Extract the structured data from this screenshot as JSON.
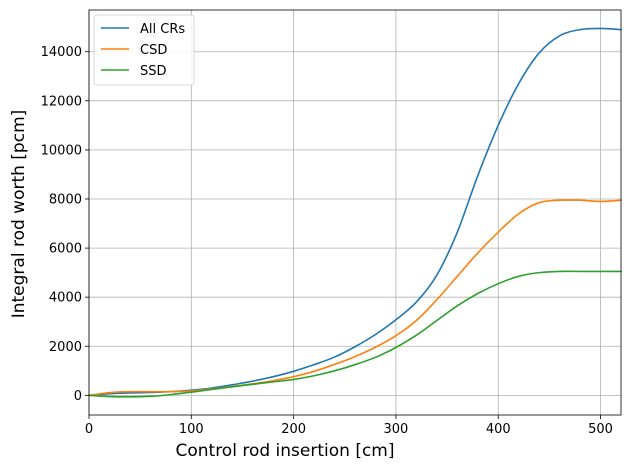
{
  "chart_data": {
    "type": "line",
    "xlabel": "Control rod insertion [cm]",
    "ylabel": "Integral rod worth [pcm]",
    "xlim": [
      0,
      520
    ],
    "ylim": [
      -800,
      15700
    ],
    "xticks": [
      0,
      100,
      200,
      300,
      400,
      500
    ],
    "yticks": [
      0,
      2000,
      4000,
      6000,
      8000,
      10000,
      12000,
      14000
    ],
    "grid": true,
    "legend_position": "top-left",
    "series": [
      {
        "name": "All CRs",
        "color": "#1f77b4",
        "x": [
          0,
          20,
          40,
          60,
          80,
          100,
          120,
          140,
          160,
          180,
          200,
          220,
          240,
          260,
          280,
          300,
          320,
          340,
          360,
          380,
          400,
          420,
          440,
          460,
          480,
          500,
          520
        ],
        "y": [
          0,
          70,
          100,
          120,
          150,
          210,
          300,
          430,
          580,
          760,
          980,
          1250,
          1560,
          1980,
          2480,
          3080,
          3800,
          4900,
          6650,
          8950,
          11000,
          12700,
          13950,
          14650,
          14900,
          14950,
          14900
        ]
      },
      {
        "name": "CSD",
        "color": "#ff7f0e",
        "x": [
          0,
          20,
          40,
          60,
          80,
          100,
          120,
          140,
          160,
          180,
          200,
          220,
          240,
          260,
          280,
          300,
          320,
          340,
          360,
          380,
          400,
          420,
          440,
          460,
          480,
          500,
          520
        ],
        "y": [
          0,
          110,
          150,
          150,
          150,
          180,
          260,
          360,
          470,
          600,
          760,
          980,
          1260,
          1580,
          1960,
          2430,
          3050,
          3900,
          4850,
          5800,
          6650,
          7400,
          7850,
          7950,
          7950,
          7900,
          7950
        ]
      },
      {
        "name": "SSD",
        "color": "#2ca02c",
        "x": [
          0,
          20,
          40,
          60,
          80,
          100,
          120,
          140,
          160,
          180,
          200,
          220,
          240,
          260,
          280,
          300,
          320,
          340,
          360,
          380,
          400,
          420,
          440,
          460,
          480,
          500,
          520
        ],
        "y": [
          0,
          -50,
          -60,
          -40,
          30,
          130,
          240,
          350,
          450,
          550,
          650,
          800,
          1000,
          1250,
          1550,
          1950,
          2450,
          3050,
          3650,
          4150,
          4550,
          4850,
          5000,
          5050,
          5050,
          5050,
          5050
        ]
      }
    ]
  }
}
